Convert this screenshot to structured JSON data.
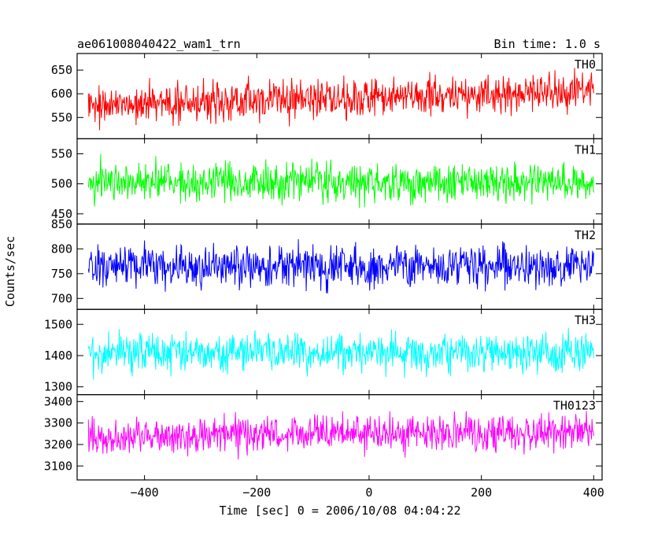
{
  "chart_data": {
    "type": "line",
    "title": "ae061008040422_wam1_trn",
    "subtitle": "Bin time: 1.0 s",
    "xlabel": "Time [sec] 0 = 2006/10/08 04:04:22",
    "ylabel": "Counts/sec",
    "xlim": [
      -520,
      415
    ],
    "x_ticks": [
      -400,
      -200,
      0,
      200,
      400
    ],
    "x_tick_labels": [
      "−400",
      "−200",
      "0",
      "200",
      "400"
    ],
    "x_start": -500,
    "x_end": 400,
    "bin_time": 1.0,
    "grid": false,
    "panels": [
      {
        "name": "TH0",
        "color": "#ff0000",
        "ylim": [
          505,
          685
        ],
        "y_ticks": [
          550,
          600,
          650
        ],
        "y_tick_labels": [
          "550",
          "600",
          "650"
        ],
        "mean_start": 576,
        "mean_end": 606,
        "noise_amplitude": 60
      },
      {
        "name": "TH1",
        "color": "#00ff00",
        "ylim": [
          433,
          575
        ],
        "y_ticks": [
          450,
          500,
          550
        ],
        "y_tick_labels": [
          "450",
          "500",
          "550"
        ],
        "mean_start": 503,
        "mean_end": 503,
        "noise_amplitude": 48
      },
      {
        "name": "TH2",
        "color": "#0000ff",
        "ylim": [
          678,
          850
        ],
        "y_ticks": [
          700,
          750,
          800,
          850
        ],
        "y_tick_labels": [
          "700",
          "750",
          "800",
          "850"
        ],
        "mean_start": 765,
        "mean_end": 765,
        "noise_amplitude": 62
      },
      {
        "name": "TH3",
        "color": "#00ffff",
        "ylim": [
          1275,
          1548
        ],
        "y_ticks": [
          1300,
          1400,
          1500
        ],
        "y_tick_labels": [
          "1300",
          "1400",
          "1500"
        ],
        "mean_start": 1410,
        "mean_end": 1410,
        "noise_amplitude": 95
      },
      {
        "name": "TH0123",
        "color": "#ff00ff",
        "ylim": [
          3035,
          3432
        ],
        "y_ticks": [
          3100,
          3200,
          3300,
          3400
        ],
        "y_tick_labels": [
          "3100",
          "3200",
          "3300",
          "3400"
        ],
        "mean_start": 3235,
        "mean_end": 3265,
        "noise_amplitude": 125
      }
    ]
  }
}
